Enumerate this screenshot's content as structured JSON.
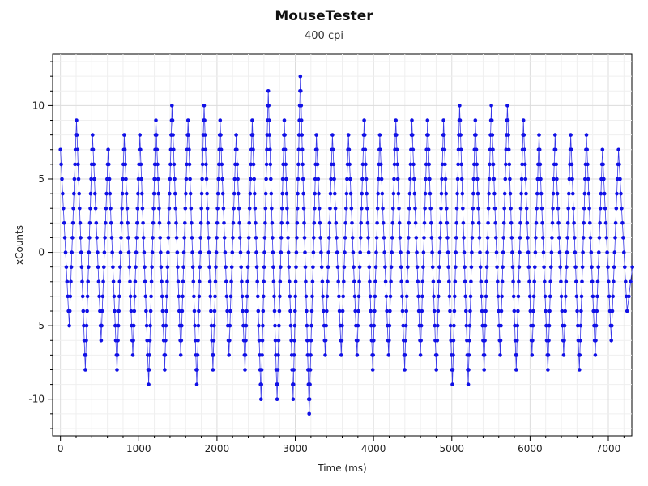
{
  "chart_data": {
    "type": "scatter",
    "title": "MouseTester",
    "subtitle": "400 cpi",
    "xlabel": "Time (ms)",
    "ylabel": "xCounts",
    "xlim": [
      -100,
      7300
    ],
    "ylim": [
      -12.5,
      13.5
    ],
    "xticks": [
      0,
      1000,
      2000,
      3000,
      4000,
      5000,
      6000,
      7000
    ],
    "yticks": [
      -10,
      -5,
      0,
      5,
      10
    ],
    "xtick_labels": [
      "0",
      "1000",
      "2000",
      "3000",
      "4000",
      "5000",
      "6000",
      "7000"
    ],
    "ytick_labels": [
      "-10",
      "-5",
      "0",
      "5",
      "10"
    ],
    "grid": true,
    "legend": "none",
    "colors": {
      "series": "#1010e6",
      "line": "#3a3ae8",
      "grid": "#e6e6e6",
      "axis": "#000000"
    },
    "series": [
      {
        "style": "points-with-interpolated-line",
        "cycles": [
          {
            "t": 0,
            "max": 7,
            "min": -5
          },
          {
            "t": 205,
            "max": 9,
            "min": -8
          },
          {
            "t": 410,
            "max": 8,
            "min": -6
          },
          {
            "t": 610,
            "max": 7,
            "min": -8
          },
          {
            "t": 815,
            "max": 8,
            "min": -7
          },
          {
            "t": 1015,
            "max": 8,
            "min": -9
          },
          {
            "t": 1220,
            "max": 9,
            "min": -8
          },
          {
            "t": 1425,
            "max": 10,
            "min": -7
          },
          {
            "t": 1630,
            "max": 9,
            "min": -9
          },
          {
            "t": 1835,
            "max": 10,
            "min": -8
          },
          {
            "t": 2040,
            "max": 9,
            "min": -7
          },
          {
            "t": 2245,
            "max": 8,
            "min": -8
          },
          {
            "t": 2450,
            "max": 9,
            "min": -10
          },
          {
            "t": 2655,
            "max": 11,
            "min": -10
          },
          {
            "t": 2860,
            "max": 9,
            "min": -10
          },
          {
            "t": 3065,
            "max": 12,
            "min": -11
          },
          {
            "t": 3270,
            "max": 8,
            "min": -7
          },
          {
            "t": 3475,
            "max": 8,
            "min": -7
          },
          {
            "t": 3680,
            "max": 8,
            "min": -7
          },
          {
            "t": 3880,
            "max": 9,
            "min": -8
          },
          {
            "t": 4080,
            "max": 8,
            "min": -7
          },
          {
            "t": 4285,
            "max": 9,
            "min": -8
          },
          {
            "t": 4490,
            "max": 9,
            "min": -7
          },
          {
            "t": 4690,
            "max": 9,
            "min": -8
          },
          {
            "t": 4895,
            "max": 9,
            "min": -9
          },
          {
            "t": 5100,
            "max": 10,
            "min": -9
          },
          {
            "t": 5300,
            "max": 9,
            "min": -8
          },
          {
            "t": 5505,
            "max": 10,
            "min": -7
          },
          {
            "t": 5710,
            "max": 10,
            "min": -8
          },
          {
            "t": 5915,
            "max": 9,
            "min": -7
          },
          {
            "t": 6115,
            "max": 8,
            "min": -8
          },
          {
            "t": 6320,
            "max": 8,
            "min": -7
          },
          {
            "t": 6520,
            "max": 8,
            "min": -8
          },
          {
            "t": 6720,
            "max": 8,
            "min": -7
          },
          {
            "t": 6925,
            "max": 7,
            "min": -6
          },
          {
            "t": 7130,
            "max": 7,
            "min": -4
          }
        ]
      }
    ]
  }
}
